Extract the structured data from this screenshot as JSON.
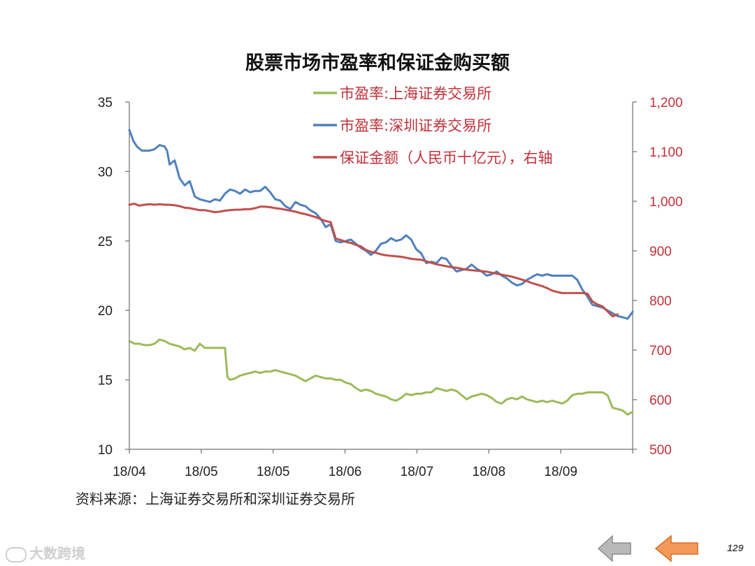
{
  "page": {
    "source": "资料来源：上海证券交易所和深圳证券交易所",
    "watermark": "大数跨境",
    "page_number": "129",
    "colors": {
      "back_arrow": "#b9b9b9",
      "forward_arrow": "#f39a5a"
    },
    "icons": [
      "back-arrow-icon",
      "forward-arrow-icon"
    ]
  },
  "chart_data": {
    "type": "line",
    "title": "股票市场市盈率和保证金购买额",
    "x_ticks": [
      "18/04",
      "18/05",
      "18/05",
      "18/06",
      "18/07",
      "18/08",
      "18/09"
    ],
    "y_left": {
      "min": 10,
      "max": 35,
      "ticks": [
        "10",
        "15",
        "20",
        "25",
        "30",
        "35"
      ]
    },
    "y_right": {
      "min": 500,
      "max": 1200,
      "ticks": [
        "500",
        "600",
        "700",
        "800",
        "900",
        "1,000",
        "1,100",
        "1,200"
      ]
    },
    "x_range": [
      0,
      100
    ],
    "legend_position": "top-right",
    "grid": false,
    "series": [
      {
        "name": "市盈率:上海证券交易所",
        "axis": "left",
        "color": "#9bbb59",
        "points": [
          [
            0,
            17.8
          ],
          [
            1,
            17.6
          ],
          [
            2,
            17.6
          ],
          [
            3,
            17.5
          ],
          [
            4,
            17.5
          ],
          [
            5,
            17.6
          ],
          [
            6,
            17.9
          ],
          [
            7,
            17.8
          ],
          [
            8,
            17.6
          ],
          [
            9,
            17.5
          ],
          [
            10,
            17.4
          ],
          [
            11,
            17.2
          ],
          [
            12,
            17.3
          ],
          [
            13,
            17.1
          ],
          [
            14,
            17.6
          ],
          [
            15,
            17.3
          ],
          [
            16,
            17.3
          ],
          [
            17,
            17.3
          ],
          [
            18,
            17.3
          ],
          [
            19,
            17.3
          ],
          [
            19.5,
            15.2
          ],
          [
            20,
            15
          ],
          [
            21,
            15.1
          ],
          [
            22,
            15.3
          ],
          [
            23,
            15.4
          ],
          [
            24,
            15.5
          ],
          [
            25,
            15.6
          ],
          [
            26,
            15.5
          ],
          [
            27,
            15.6
          ],
          [
            28,
            15.6
          ],
          [
            29,
            15.7
          ],
          [
            30,
            15.6
          ],
          [
            31,
            15.5
          ],
          [
            32,
            15.4
          ],
          [
            33,
            15.3
          ],
          [
            34,
            15.1
          ],
          [
            35,
            14.9
          ],
          [
            36,
            15.1
          ],
          [
            37,
            15.3
          ],
          [
            38,
            15.2
          ],
          [
            39,
            15.1
          ],
          [
            40,
            15.1
          ],
          [
            41,
            15
          ],
          [
            42,
            15
          ],
          [
            43,
            14.8
          ],
          [
            44,
            14.7
          ],
          [
            45,
            14.4
          ],
          [
            46,
            14.2
          ],
          [
            47,
            14.3
          ],
          [
            48,
            14.2
          ],
          [
            49,
            14
          ],
          [
            50,
            13.9
          ],
          [
            51,
            13.8
          ],
          [
            52,
            13.6
          ],
          [
            53,
            13.5
          ],
          [
            54,
            13.7
          ],
          [
            55,
            14
          ],
          [
            56,
            13.9
          ],
          [
            57,
            14
          ],
          [
            58,
            14
          ],
          [
            59,
            14.1
          ],
          [
            60,
            14.1
          ],
          [
            61,
            14.4
          ],
          [
            62,
            14.3
          ],
          [
            63,
            14.2
          ],
          [
            64,
            14.3
          ],
          [
            65,
            14.2
          ],
          [
            66,
            13.9
          ],
          [
            67,
            13.6
          ],
          [
            68,
            13.8
          ],
          [
            69,
            13.9
          ],
          [
            70,
            14
          ],
          [
            71,
            13.9
          ],
          [
            72,
            13.7
          ],
          [
            73,
            13.4
          ],
          [
            74,
            13.3
          ],
          [
            75,
            13.6
          ],
          [
            76,
            13.7
          ],
          [
            77,
            13.6
          ],
          [
            78,
            13.8
          ],
          [
            79,
            13.6
          ],
          [
            80,
            13.5
          ],
          [
            81,
            13.4
          ],
          [
            82,
            13.5
          ],
          [
            83,
            13.4
          ],
          [
            84,
            13.5
          ],
          [
            85,
            13.4
          ],
          [
            86,
            13.3
          ],
          [
            87,
            13.5
          ],
          [
            88,
            13.9
          ],
          [
            89,
            14
          ],
          [
            90,
            14
          ],
          [
            91,
            14.1
          ],
          [
            92,
            14.1
          ],
          [
            93,
            14.1
          ],
          [
            94,
            14.1
          ],
          [
            95,
            13.9
          ],
          [
            96,
            13
          ],
          [
            97,
            12.9
          ],
          [
            98,
            12.8
          ],
          [
            99,
            12.5
          ],
          [
            100,
            12.7
          ]
        ]
      },
      {
        "name": "市盈率:深圳证券交易所",
        "axis": "left",
        "color": "#4f81bd",
        "points": [
          [
            0,
            33
          ],
          [
            0.8,
            32.2
          ],
          [
            1.5,
            31.8
          ],
          [
            2.5,
            31.5
          ],
          [
            4,
            31.5
          ],
          [
            5,
            31.6
          ],
          [
            6,
            31.9
          ],
          [
            7,
            31.8
          ],
          [
            7.5,
            31.5
          ],
          [
            8,
            30.5
          ],
          [
            9,
            30.8
          ],
          [
            10,
            29.5
          ],
          [
            11,
            29
          ],
          [
            12,
            29.3
          ],
          [
            13,
            28.2
          ],
          [
            14,
            28
          ],
          [
            15,
            27.9
          ],
          [
            16,
            27.8
          ],
          [
            17,
            28
          ],
          [
            18,
            27.9
          ],
          [
            19,
            28.4
          ],
          [
            20,
            28.7
          ],
          [
            21,
            28.6
          ],
          [
            22,
            28.4
          ],
          [
            23,
            28.7
          ],
          [
            24,
            28.5
          ],
          [
            25,
            28.6
          ],
          [
            26,
            28.6
          ],
          [
            27,
            28.9
          ],
          [
            28,
            28.5
          ],
          [
            29,
            28
          ],
          [
            30,
            27.9
          ],
          [
            31,
            27.5
          ],
          [
            32,
            27.3
          ],
          [
            33,
            27.8
          ],
          [
            34,
            27.6
          ],
          [
            35,
            27.5
          ],
          [
            36,
            27.2
          ],
          [
            37,
            27
          ],
          [
            38,
            26.6
          ],
          [
            39,
            26
          ],
          [
            40,
            26.2
          ],
          [
            41,
            25
          ],
          [
            42,
            24.9
          ],
          [
            43,
            25
          ],
          [
            44,
            25.1
          ],
          [
            45,
            24.8
          ],
          [
            46,
            24.5
          ],
          [
            47,
            24.3
          ],
          [
            48,
            24
          ],
          [
            49,
            24.3
          ],
          [
            50,
            24.8
          ],
          [
            51,
            24.9
          ],
          [
            52,
            25.2
          ],
          [
            53,
            25
          ],
          [
            54,
            25.1
          ],
          [
            55,
            25.4
          ],
          [
            56,
            25.1
          ],
          [
            57,
            24.4
          ],
          [
            58,
            24.1
          ],
          [
            59,
            23.4
          ],
          [
            60,
            23.5
          ],
          [
            61,
            23.4
          ],
          [
            62,
            23.8
          ],
          [
            63,
            23.7
          ],
          [
            64,
            23.2
          ],
          [
            65,
            22.8
          ],
          [
            66,
            22.9
          ],
          [
            67,
            23
          ],
          [
            68,
            23.3
          ],
          [
            69,
            23
          ],
          [
            70,
            22.8
          ],
          [
            71,
            22.5
          ],
          [
            72,
            22.6
          ],
          [
            73,
            22.8
          ],
          [
            74,
            22.5
          ],
          [
            75,
            22.3
          ],
          [
            76,
            22
          ],
          [
            77,
            21.8
          ],
          [
            78,
            21.9
          ],
          [
            79,
            22.2
          ],
          [
            80,
            22.4
          ],
          [
            81,
            22.6
          ],
          [
            82,
            22.5
          ],
          [
            83,
            22.6
          ],
          [
            84,
            22.5
          ],
          [
            85,
            22.5
          ],
          [
            86,
            22.5
          ],
          [
            87,
            22.5
          ],
          [
            88,
            22.5
          ],
          [
            89,
            22.2
          ],
          [
            90,
            21.5
          ],
          [
            91,
            21
          ],
          [
            92,
            20.4
          ],
          [
            93,
            20.3
          ],
          [
            94,
            20.2
          ],
          [
            95,
            20
          ],
          [
            96,
            19.8
          ],
          [
            97,
            19.6
          ],
          [
            98,
            19.5
          ],
          [
            99,
            19.4
          ],
          [
            100,
            19.9
          ]
        ]
      },
      {
        "name": "保证金额（人民币十亿元），右轴",
        "axis": "right",
        "color": "#c0504d",
        "points": [
          [
            0,
            993
          ],
          [
            1,
            995
          ],
          [
            2,
            991
          ],
          [
            3,
            993
          ],
          [
            4,
            994
          ],
          [
            5,
            993
          ],
          [
            6,
            994
          ],
          [
            7,
            993
          ],
          [
            8,
            993
          ],
          [
            9,
            992
          ],
          [
            10,
            990
          ],
          [
            11,
            987
          ],
          [
            12,
            986
          ],
          [
            13,
            984
          ],
          [
            14,
            982
          ],
          [
            15,
            982
          ],
          [
            16,
            980
          ],
          [
            17,
            978
          ],
          [
            18,
            979
          ],
          [
            19,
            981
          ],
          [
            20,
            982
          ],
          [
            21,
            983
          ],
          [
            22,
            983
          ],
          [
            23,
            984
          ],
          [
            24,
            984
          ],
          [
            25,
            986
          ],
          [
            26,
            989
          ],
          [
            27,
            989
          ],
          [
            28,
            988
          ],
          [
            29,
            986
          ],
          [
            30,
            985
          ],
          [
            31,
            983
          ],
          [
            32,
            981
          ],
          [
            33,
            979
          ],
          [
            34,
            976
          ],
          [
            35,
            974
          ],
          [
            36,
            971
          ],
          [
            37,
            968
          ],
          [
            38,
            964
          ],
          [
            39,
            960
          ],
          [
            40,
            958
          ],
          [
            41,
            925
          ],
          [
            42,
            922
          ],
          [
            43,
            918
          ],
          [
            44,
            916
          ],
          [
            45,
            912
          ],
          [
            46,
            909
          ],
          [
            47,
            902
          ],
          [
            48,
            898
          ],
          [
            49,
            896
          ],
          [
            50,
            893
          ],
          [
            51,
            891
          ],
          [
            52,
            890
          ],
          [
            53,
            889
          ],
          [
            54,
            888
          ],
          [
            55,
            886
          ],
          [
            56,
            884
          ],
          [
            57,
            883
          ],
          [
            58,
            882
          ],
          [
            59,
            879
          ],
          [
            60,
            876
          ],
          [
            61,
            873
          ],
          [
            62,
            871
          ],
          [
            63,
            869
          ],
          [
            64,
            867
          ],
          [
            65,
            866
          ],
          [
            66,
            864
          ],
          [
            67,
            862
          ],
          [
            68,
            861
          ],
          [
            69,
            860
          ],
          [
            70,
            859
          ],
          [
            71,
            858
          ],
          [
            72,
            856
          ],
          [
            73,
            854
          ],
          [
            74,
            852
          ],
          [
            75,
            850
          ],
          [
            76,
            848
          ],
          [
            77,
            845
          ],
          [
            78,
            842
          ],
          [
            79,
            839
          ],
          [
            80,
            835
          ],
          [
            81,
            832
          ],
          [
            82,
            829
          ],
          [
            83,
            825
          ],
          [
            84,
            820
          ],
          [
            85,
            817
          ],
          [
            86,
            815
          ],
          [
            87,
            815
          ],
          [
            88,
            815
          ],
          [
            89,
            815
          ],
          [
            90,
            815
          ],
          [
            91,
            814
          ],
          [
            92,
            798
          ],
          [
            93,
            792
          ],
          [
            94,
            788
          ],
          [
            95,
            778
          ],
          [
            96,
            768
          ],
          [
            97,
            772
          ]
        ]
      }
    ]
  }
}
